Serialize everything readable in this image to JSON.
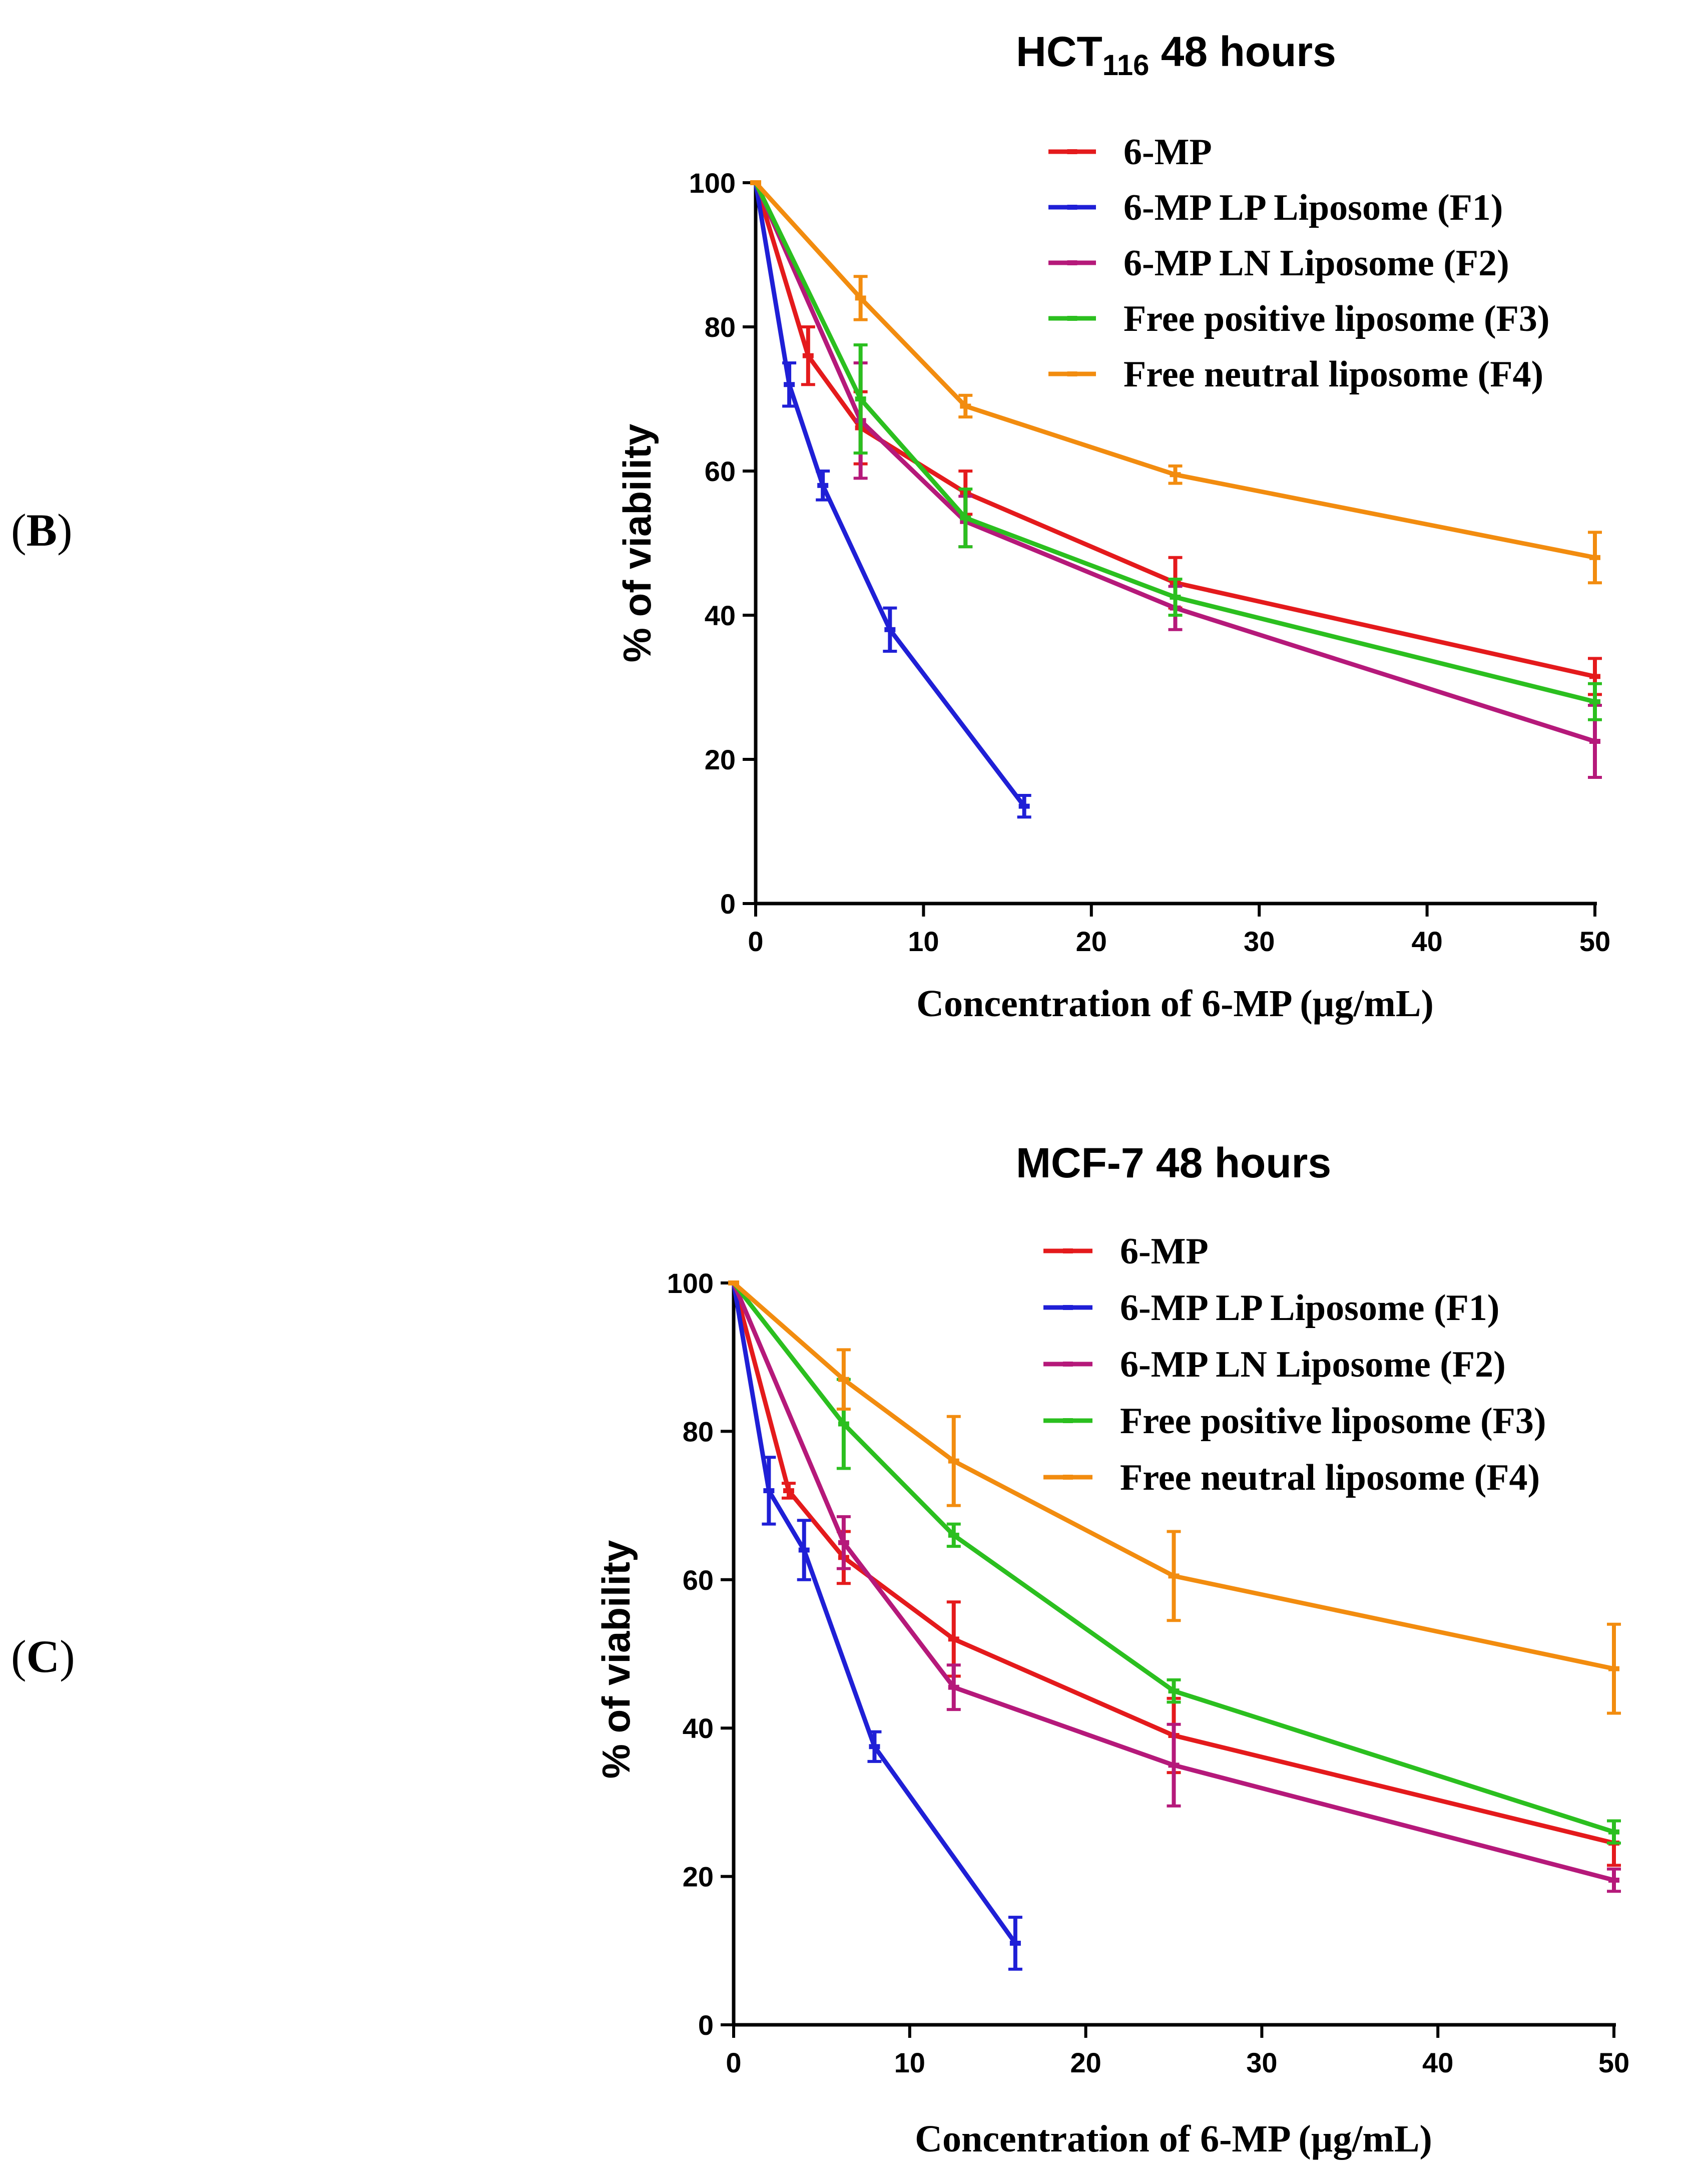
{
  "panels": [
    {
      "label": "B"
    },
    {
      "label": "C"
    }
  ],
  "chart_data": [
    {
      "type": "line",
      "title": "HCT",
      "title_subscript": "116",
      "title_suffix": " 48 hours",
      "xlabel": "Concentration of 6-MP (µg/mL)",
      "ylabel": "% of viability",
      "xlim": [
        0,
        50
      ],
      "ylim": [
        0,
        100
      ],
      "xticks": [
        "0",
        "10",
        "20",
        "30",
        "40",
        "50"
      ],
      "yticks": [
        "0",
        "20",
        "40",
        "60",
        "80",
        "100"
      ],
      "legend_position": "top-right",
      "series": [
        {
          "name": "6-MP",
          "color": "#e41a1c",
          "x": [
            0,
            3.125,
            6.25,
            12.5,
            25,
            50
          ],
          "y": [
            100,
            76,
            66,
            57,
            44.5,
            31.5
          ],
          "err": [
            0,
            4,
            5,
            3,
            3.5,
            2.5
          ]
        },
        {
          "name": "6-MP LP Liposome (F1)",
          "color": "#1f1fd6",
          "x": [
            0,
            2,
            4,
            8,
            16
          ],
          "y": [
            100,
            72,
            58,
            38,
            13.5
          ],
          "err": [
            0,
            3,
            2,
            3,
            1.5
          ]
        },
        {
          "name": "6-MP LN Liposome (F2)",
          "color": "#b5197a",
          "x": [
            0,
            6.25,
            12.5,
            25,
            50
          ],
          "y": [
            100,
            67,
            53,
            41,
            22.5
          ],
          "err": [
            0,
            8,
            3.5,
            3,
            5
          ]
        },
        {
          "name": "Free positive liposome (F3)",
          "color": "#2bbf1f",
          "x": [
            0,
            6.25,
            12.5,
            25,
            50
          ],
          "y": [
            100,
            70,
            53.5,
            42.5,
            28
          ],
          "err": [
            0,
            7.5,
            4,
            2.5,
            2.5
          ]
        },
        {
          "name": "Free neutral liposome (F4)",
          "color": "#f28c0f",
          "x": [
            0,
            6.25,
            12.5,
            25,
            50
          ],
          "y": [
            100,
            84,
            69,
            59.5,
            48
          ],
          "err": [
            0,
            3,
            1.5,
            1.2,
            3.5
          ]
        }
      ]
    },
    {
      "type": "line",
      "title": "MCF-7 48 hours",
      "title_subscript": "",
      "title_suffix": "",
      "xlabel": "Concentration of 6-MP (µg/mL)",
      "ylabel": "% of viability",
      "xlim": [
        0,
        50
      ],
      "ylim": [
        0,
        100
      ],
      "xticks": [
        "0",
        "10",
        "20",
        "30",
        "40",
        "50"
      ],
      "yticks": [
        "0",
        "20",
        "40",
        "60",
        "80",
        "100"
      ],
      "legend_position": "top-right",
      "series": [
        {
          "name": "6-MP",
          "color": "#e41a1c",
          "x": [
            0,
            3.125,
            6.25,
            12.5,
            25,
            50
          ],
          "y": [
            100,
            72,
            63,
            52,
            39,
            24.5
          ],
          "err": [
            0,
            1,
            3.5,
            5,
            5,
            3
          ]
        },
        {
          "name": "6-MP LP Liposome (F1)",
          "color": "#1f1fd6",
          "x": [
            0,
            2,
            4,
            8,
            16
          ],
          "y": [
            100,
            72,
            64,
            37.5,
            11
          ],
          "err": [
            0,
            4.5,
            4,
            2,
            3.5
          ]
        },
        {
          "name": "6-MP LN Liposome (F2)",
          "color": "#b5197a",
          "x": [
            0,
            6.25,
            12.5,
            25,
            50
          ],
          "y": [
            100,
            65,
            45.5,
            35,
            19.5
          ],
          "err": [
            0,
            3.5,
            3,
            5.5,
            1.5
          ]
        },
        {
          "name": "Free positive liposome (F3)",
          "color": "#2bbf1f",
          "x": [
            0,
            6.25,
            12.5,
            25,
            50
          ],
          "y": [
            100,
            81,
            66,
            45,
            26
          ],
          "err": [
            0,
            6,
            1.5,
            1.5,
            1.5
          ]
        },
        {
          "name": "Free neutral liposome (F4)",
          "color": "#f28c0f",
          "x": [
            0,
            6.25,
            12.5,
            25,
            50
          ],
          "y": [
            100,
            87,
            76,
            60.5,
            48
          ],
          "err": [
            0,
            4,
            6,
            6,
            6
          ]
        }
      ]
    }
  ]
}
